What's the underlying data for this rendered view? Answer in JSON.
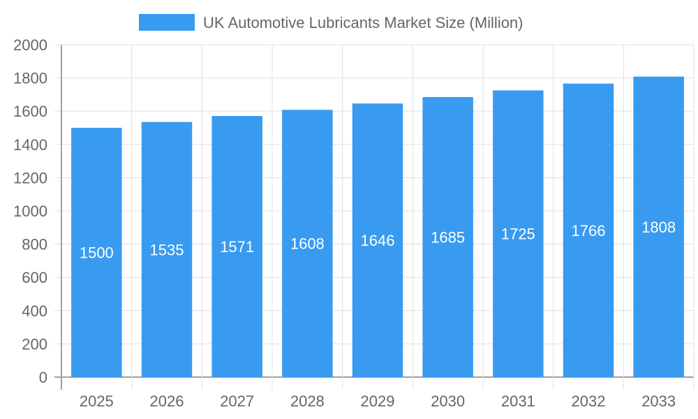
{
  "chart_data": {
    "type": "bar",
    "title": "",
    "xlabel": "",
    "ylabel": "",
    "categories": [
      "2025",
      "2026",
      "2027",
      "2028",
      "2029",
      "2030",
      "2031",
      "2032",
      "2033"
    ],
    "series": [
      {
        "name": "UK Automotive Lubricants Market Size (Million)",
        "values": [
          1500,
          1535,
          1571,
          1608,
          1646,
          1685,
          1725,
          1766,
          1808
        ]
      }
    ],
    "ylim": [
      0,
      2000
    ],
    "yticks": [
      0,
      200,
      400,
      600,
      800,
      1000,
      1200,
      1400,
      1600,
      1800,
      2000
    ],
    "grid": true,
    "legend_position": "top",
    "data_labels": true,
    "colors": {
      "bar": "#389bf0",
      "grid": "#e0e0e0",
      "axis": "#a0a0a0",
      "text": "#666666",
      "label": "#ffffff"
    }
  }
}
